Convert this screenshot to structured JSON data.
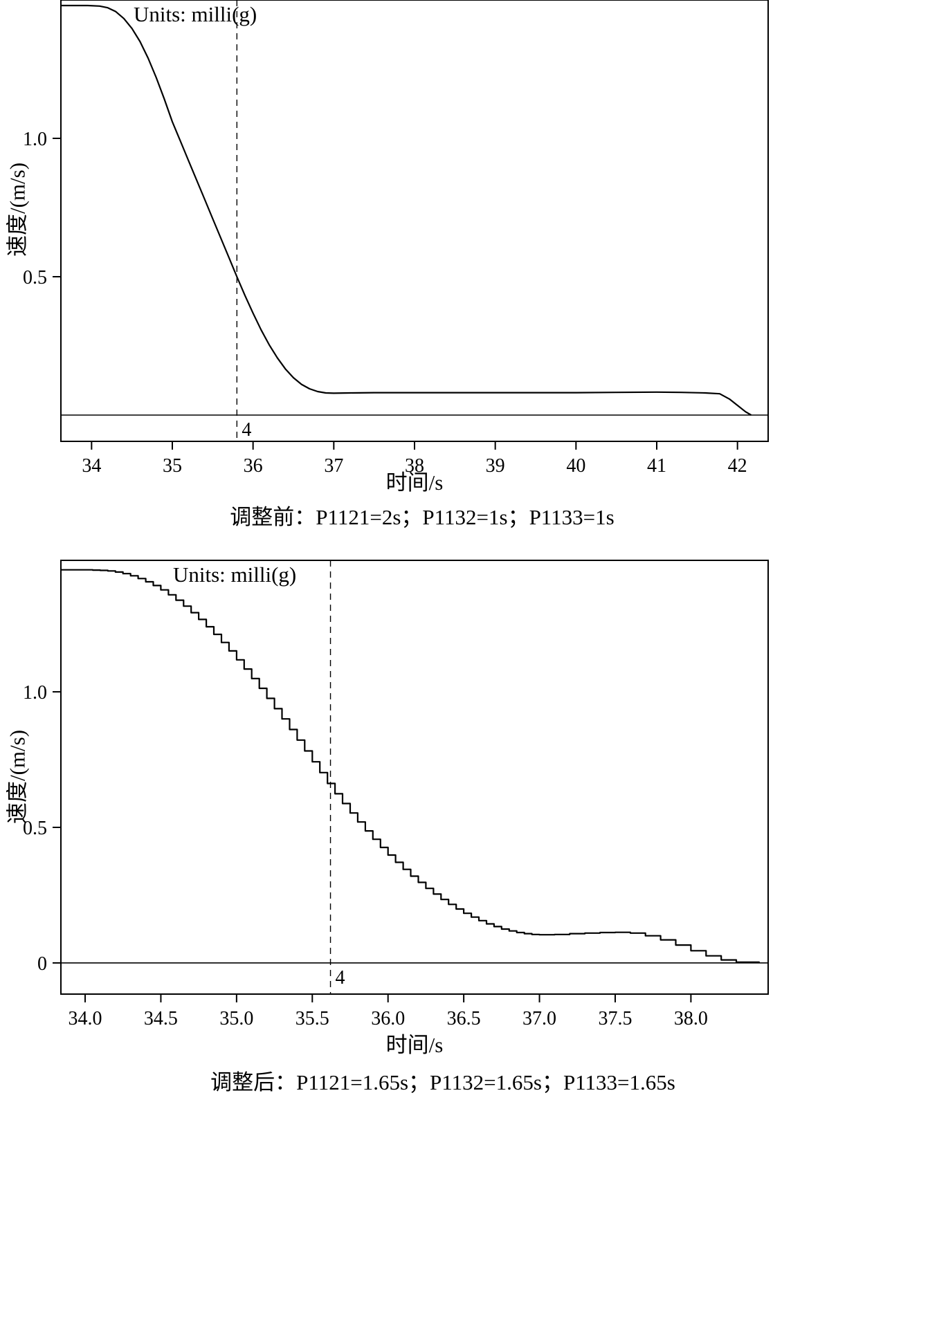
{
  "chart_data": [
    {
      "type": "line",
      "title": "Units: milli(g)",
      "xlabel": "时间/s",
      "ylabel": "速度/(m/s)",
      "caption": "调整前：P1121=2s；P1132=1s；P1133=1s",
      "xlim": [
        33.62,
        42.38
      ],
      "ylim": [
        -0.095,
        1.5
      ],
      "xticks": [
        34,
        35,
        36,
        37,
        38,
        39,
        40,
        41,
        42
      ],
      "xtick_labels": [
        "34",
        "35",
        "36",
        "37",
        "38",
        "39",
        "40",
        "41",
        "42"
      ],
      "yticks": [
        0.5,
        1.0
      ],
      "ytick_labels": [
        "0.5",
        "1.0"
      ],
      "grid": false,
      "legend": "none",
      "zero_line": 0,
      "cursor": {
        "x": 35.8,
        "label": "4"
      },
      "line_style": "smooth",
      "series": [
        {
          "name": "速度",
          "points": [
            [
              33.62,
              1.48
            ],
            [
              33.95,
              1.48
            ],
            [
              34.1,
              1.478
            ],
            [
              34.2,
              1.472
            ],
            [
              34.3,
              1.458
            ],
            [
              34.4,
              1.433
            ],
            [
              34.5,
              1.397
            ],
            [
              34.6,
              1.35
            ],
            [
              34.7,
              1.29
            ],
            [
              34.8,
              1.22
            ],
            [
              34.9,
              1.143
            ],
            [
              35.0,
              1.06
            ],
            [
              35.1,
              0.99
            ],
            [
              35.2,
              0.92
            ],
            [
              35.3,
              0.85
            ],
            [
              35.4,
              0.78
            ],
            [
              35.5,
              0.71
            ],
            [
              35.6,
              0.64
            ],
            [
              35.7,
              0.57
            ],
            [
              35.8,
              0.5
            ],
            [
              35.9,
              0.432
            ],
            [
              36.0,
              0.368
            ],
            [
              36.1,
              0.308
            ],
            [
              36.2,
              0.254
            ],
            [
              36.3,
              0.207
            ],
            [
              36.4,
              0.167
            ],
            [
              36.5,
              0.135
            ],
            [
              36.6,
              0.111
            ],
            [
              36.7,
              0.095
            ],
            [
              36.8,
              0.085
            ],
            [
              36.9,
              0.08
            ],
            [
              37.0,
              0.079
            ],
            [
              37.2,
              0.08
            ],
            [
              37.5,
              0.081
            ],
            [
              38.0,
              0.081
            ],
            [
              38.5,
              0.081
            ],
            [
              39.0,
              0.081
            ],
            [
              39.5,
              0.081
            ],
            [
              40.0,
              0.081
            ],
            [
              40.5,
              0.082
            ],
            [
              41.0,
              0.083
            ],
            [
              41.3,
              0.082
            ],
            [
              41.6,
              0.08
            ],
            [
              41.78,
              0.077
            ],
            [
              41.9,
              0.058
            ],
            [
              42.0,
              0.035
            ],
            [
              42.1,
              0.012
            ],
            [
              42.17,
              0.0
            ]
          ]
        }
      ]
    },
    {
      "type": "line",
      "title": "Units: milli(g)",
      "xlabel": "时间/s",
      "ylabel": "速度/(m/s)",
      "caption": "调整后：P1121=1.65s；P1132=1.65s；P1133=1.65s",
      "xlim": [
        33.84,
        38.51
      ],
      "ylim": [
        -0.115,
        1.485
      ],
      "xticks": [
        34.0,
        34.5,
        35.0,
        35.5,
        36.0,
        36.5,
        37.0,
        37.5,
        38.0
      ],
      "xtick_labels": [
        "34.0",
        "34.5",
        "35.0",
        "35.5",
        "36.0",
        "36.5",
        "37.0",
        "37.5",
        "38.0"
      ],
      "yticks": [
        0,
        0.5,
        1.0
      ],
      "ytick_labels": [
        "0",
        "0.5",
        "1.0"
      ],
      "grid": false,
      "legend": "none",
      "zero_line": 0,
      "cursor": {
        "x": 35.62,
        "label": "4"
      },
      "line_style": "stepped",
      "series": [
        {
          "name": "速度",
          "points": [
            [
              33.84,
              1.45
            ],
            [
              34.0,
              1.45
            ],
            [
              34.05,
              1.449
            ],
            [
              34.1,
              1.448
            ],
            [
              34.15,
              1.446
            ],
            [
              34.2,
              1.442
            ],
            [
              34.25,
              1.436
            ],
            [
              34.3,
              1.428
            ],
            [
              34.35,
              1.418
            ],
            [
              34.4,
              1.406
            ],
            [
              34.45,
              1.392
            ],
            [
              34.5,
              1.376
            ],
            [
              34.55,
              1.358
            ],
            [
              34.6,
              1.338
            ],
            [
              34.65,
              1.316
            ],
            [
              34.7,
              1.292
            ],
            [
              34.75,
              1.267
            ],
            [
              34.8,
              1.24
            ],
            [
              34.85,
              1.212
            ],
            [
              34.9,
              1.182
            ],
            [
              34.95,
              1.151
            ],
            [
              35.0,
              1.118
            ],
            [
              35.05,
              1.084
            ],
            [
              35.1,
              1.049
            ],
            [
              35.15,
              1.013
            ],
            [
              35.2,
              0.976
            ],
            [
              35.25,
              0.938
            ],
            [
              35.3,
              0.9
            ],
            [
              35.35,
              0.861
            ],
            [
              35.4,
              0.822
            ],
            [
              35.45,
              0.782
            ],
            [
              35.5,
              0.742
            ],
            [
              35.55,
              0.702
            ],
            [
              35.6,
              0.662
            ],
            [
              35.65,
              0.624
            ],
            [
              35.7,
              0.588
            ],
            [
              35.75,
              0.553
            ],
            [
              35.8,
              0.52
            ],
            [
              35.85,
              0.487
            ],
            [
              35.9,
              0.456
            ],
            [
              35.95,
              0.426
            ],
            [
              36.0,
              0.398
            ],
            [
              36.05,
              0.371
            ],
            [
              36.1,
              0.345
            ],
            [
              36.15,
              0.32
            ],
            [
              36.2,
              0.297
            ],
            [
              36.25,
              0.275
            ],
            [
              36.3,
              0.254
            ],
            [
              36.35,
              0.234
            ],
            [
              36.4,
              0.216
            ],
            [
              36.45,
              0.199
            ],
            [
              36.5,
              0.183
            ],
            [
              36.55,
              0.169
            ],
            [
              36.6,
              0.156
            ],
            [
              36.65,
              0.144
            ],
            [
              36.7,
              0.134
            ],
            [
              36.75,
              0.125
            ],
            [
              36.8,
              0.118
            ],
            [
              36.85,
              0.112
            ],
            [
              36.9,
              0.108
            ],
            [
              36.95,
              0.105
            ],
            [
              37.0,
              0.104
            ],
            [
              37.1,
              0.105
            ],
            [
              37.2,
              0.108
            ],
            [
              37.3,
              0.11
            ],
            [
              37.4,
              0.112
            ],
            [
              37.5,
              0.113
            ],
            [
              37.6,
              0.11
            ],
            [
              37.7,
              0.1
            ],
            [
              37.8,
              0.085
            ],
            [
              37.9,
              0.066
            ],
            [
              38.0,
              0.045
            ],
            [
              38.1,
              0.026
            ],
            [
              38.2,
              0.011
            ],
            [
              38.3,
              0.003
            ],
            [
              38.45,
              0.0
            ]
          ]
        }
      ]
    }
  ]
}
